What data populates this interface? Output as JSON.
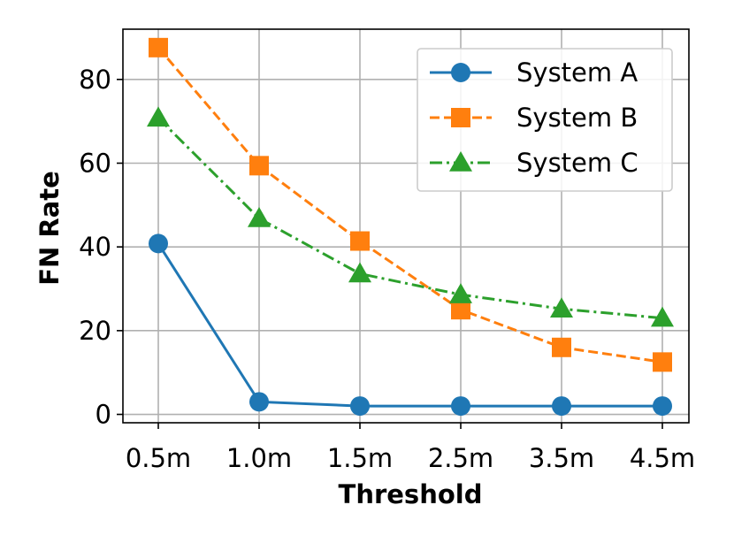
{
  "chart_data": {
    "type": "line",
    "title": "",
    "xlabel": "Threshold",
    "ylabel": "FN Rate",
    "categories": [
      "0.5m",
      "1.0m",
      "1.5m",
      "2.5m",
      "3.5m",
      "4.5m"
    ],
    "ylim": [
      -2,
      92
    ],
    "yticks": [
      0,
      20,
      40,
      60,
      80
    ],
    "grid": true,
    "legend_position": "top-right",
    "series": [
      {
        "name": "System A",
        "values": [
          40.8,
          3.0,
          2.0,
          2.0,
          2.0,
          2.0
        ],
        "color": "#1f77b4",
        "marker": "circle",
        "linestyle": "solid"
      },
      {
        "name": "System B",
        "values": [
          87.6,
          59.4,
          41.4,
          25.0,
          16.0,
          12.5
        ],
        "color": "#ff7f0e",
        "marker": "square",
        "linestyle": "dashed"
      },
      {
        "name": "System C",
        "values": [
          70.8,
          46.8,
          33.6,
          28.6,
          25.2,
          23.0
        ],
        "color": "#2ca02c",
        "marker": "triangle",
        "linestyle": "dashdot"
      }
    ]
  }
}
